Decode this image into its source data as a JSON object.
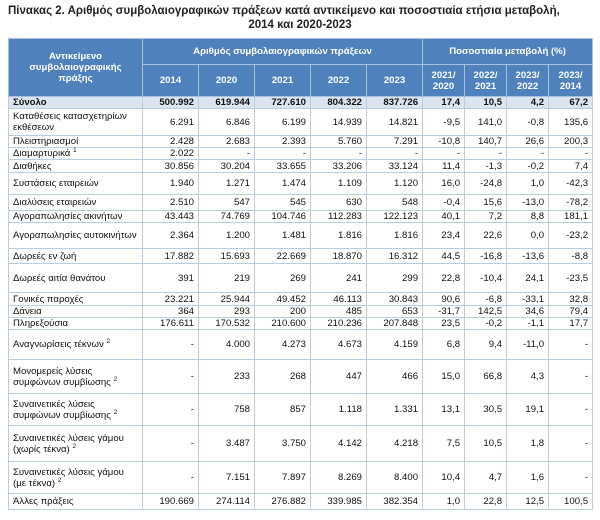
{
  "title": {
    "line1": "Πίνακας 2. Αριθμός συμβολαιογραφικών πράξεων κατά αντικείμενο και ποσοστιαία ετήσια μεταβολή,",
    "line2": "2014 και 2020-2023"
  },
  "table": {
    "header": {
      "subject": "Αντικείμενο συμβολαιογραφικής πράξης",
      "count_group": "Αριθμός συμβολαιογραφικών πράξεων",
      "change_group": "Ποσοστιαία μεταβολή (%)",
      "years": [
        "2014",
        "2020",
        "2021",
        "2022",
        "2023"
      ],
      "periods": [
        "2021/ 2020",
        "2022/ 2021",
        "2023/ 2022",
        "2023/ 2014"
      ]
    },
    "rows": [
      {
        "label": "Σύνολο",
        "cells": [
          "500.992",
          "619.944",
          "727.610",
          "804.322",
          "837.726",
          "17,4",
          "10,5",
          "4,2",
          "67,2"
        ]
      },
      {
        "label": "Καταθέσεις κατασχετηρίων εκθέσεων",
        "cells": [
          "6.291",
          "6.846",
          "6.199",
          "14.939",
          "14.821",
          "-9,5",
          "141,0",
          "-0,8",
          "135,6"
        ]
      },
      {
        "label": "Πλειστηριασμοί",
        "cells": [
          "2.428",
          "2.683",
          "2.393",
          "5.760",
          "7.291",
          "-10,8",
          "140,7",
          "26,6",
          "200,3"
        ]
      },
      {
        "label": "Διαμαρτυρικά",
        "note": "1",
        "cells": [
          "2.022",
          "-",
          "-",
          "-",
          "-",
          "-",
          "-",
          "-",
          "-"
        ]
      },
      {
        "label": "Διαθήκες",
        "cells": [
          "30.856",
          "30.204",
          "33.655",
          "33.206",
          "33.124",
          "11,4",
          "-1,3",
          "-0,2",
          "7,4"
        ]
      },
      {
        "label": "Συστάσεις εταιρειών",
        "cells": [
          "1.940",
          "1.271",
          "1.474",
          "1.109",
          "1.120",
          "16,0",
          "-24,8",
          "1,0",
          "-42,3"
        ]
      },
      {
        "label": "Διαλύσεις εταιρειών",
        "cells": [
          "2.510",
          "547",
          "545",
          "630",
          "548",
          "-0,4",
          "15,6",
          "-13,0",
          "-78,2"
        ]
      },
      {
        "label": "Αγοραπωλησίες ακινήτων",
        "cells": [
          "43.443",
          "74.769",
          "104.746",
          "112.283",
          "122.123",
          "40,1",
          "7,2",
          "8,8",
          "181,1"
        ]
      },
      {
        "label": "Αγοραπωλησίες αυτοκινήτων",
        "cells": [
          "2.364",
          "1.200",
          "1.481",
          "1.816",
          "1.816",
          "23,4",
          "22,6",
          "0,0",
          "-23,2"
        ]
      },
      {
        "label": "Δωρεές εν ζωή",
        "cells": [
          "17.882",
          "15.693",
          "22.669",
          "18.870",
          "16.312",
          "44,5",
          "-16,8",
          "-13,6",
          "-8,8"
        ]
      },
      {
        "label": "Δωρεές αιτία θανάτου",
        "cells": [
          "391",
          "219",
          "269",
          "241",
          "299",
          "22,8",
          "-10,4",
          "24,1",
          "-23,5"
        ]
      },
      {
        "label": "Γονικές παροχές",
        "cells": [
          "23.221",
          "25.944",
          "49.452",
          "46.113",
          "30.843",
          "90,6",
          "-6,8",
          "-33,1",
          "32,8"
        ]
      },
      {
        "label": "Δάνεια",
        "cells": [
          "364",
          "293",
          "200",
          "485",
          "653",
          "-31,7",
          "142,5",
          "34,6",
          "79,4"
        ]
      },
      {
        "label": "Πληρεξούσια",
        "cells": [
          "176.611",
          "170.532",
          "210.600",
          "210.236",
          "207.848",
          "23,5",
          "-0,2",
          "-1,1",
          "17,7"
        ]
      },
      {
        "label": "Αναγνωρίσεις τέκνων",
        "note": "2",
        "cells": [
          "-",
          "4.000",
          "4.273",
          "4.673",
          "4.159",
          "6,8",
          "9,4",
          "-11,0",
          "-"
        ]
      },
      {
        "label": "Μονομερείς λύσεις συμφώνων συμβίωσης",
        "note": "2",
        "cells": [
          "-",
          "233",
          "268",
          "447",
          "466",
          "15,0",
          "66,8",
          "4,3",
          "-"
        ]
      },
      {
        "label": "Συναινετικές λύσεις συμφώνων συμβίωσης",
        "note": "2",
        "cells": [
          "-",
          "758",
          "857",
          "1.118",
          "1.331",
          "13,1",
          "30,5",
          "19,1",
          "-"
        ]
      },
      {
        "label": "Συναινετικές λύσεις γάμου (χωρίς τέκνα)",
        "note": "2",
        "cells": [
          "-",
          "3.487",
          "3.750",
          "4.142",
          "4.218",
          "7,5",
          "10,5",
          "1,8",
          "-"
        ]
      },
      {
        "label": "Συναινετικές λύσεις γάμου (με τέκνα)",
        "note": "2",
        "cells": [
          "-",
          "7.151",
          "7.897",
          "8.269",
          "8.400",
          "10,4",
          "4,7",
          "1,6",
          "-"
        ]
      },
      {
        "label": "Άλλες πράξεις",
        "cells": [
          "190.669",
          "274.114",
          "276.882",
          "339.985",
          "382.354",
          "1,0",
          "22,8",
          "12,5",
          "100,5"
        ]
      }
    ]
  }
}
